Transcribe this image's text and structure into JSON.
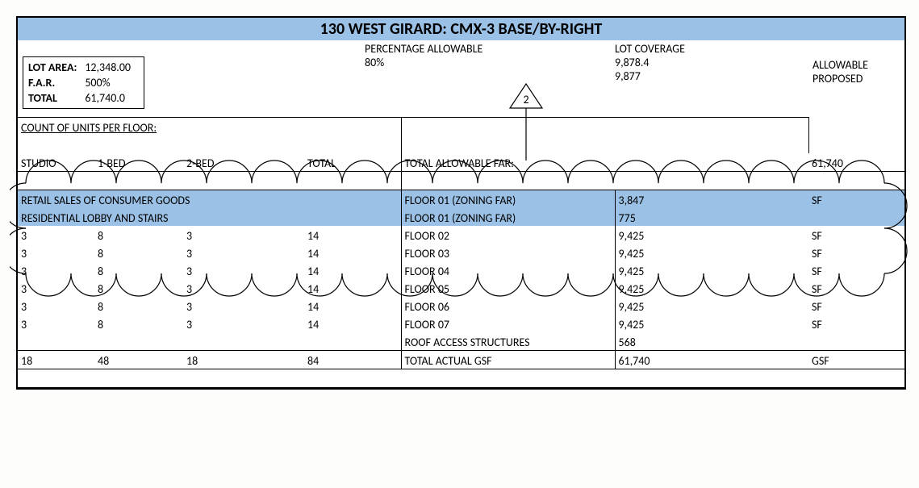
{
  "colors": {
    "accent": "#9bc2e6",
    "border": "#000000",
    "background": "#ffffff",
    "text": "#000000"
  },
  "title": "130 WEST GIRARD:  CMX-3 BASE/BY-RIGHT",
  "top": {
    "percentage_allowable_label": "PERCENTAGE ALLOWABLE",
    "percentage_allowable_value": "80%",
    "lot_coverage_label": "LOT COVERAGE",
    "lot_coverage_allowable": "9,878.4",
    "lot_coverage_proposed": "9,877",
    "allowable_label": "ALLOWABLE",
    "proposed_label": "PROPOSED",
    "lot_area_label": "LOT AREA:",
    "lot_area_value": "12,348.00",
    "far_label": "F.A.R.",
    "far_value": "500%",
    "total_label": "TOTAL",
    "total_value": "61,740.0",
    "callout_number": "2"
  },
  "units_header": "COUNT OF UNITS PER FLOOR:",
  "cols": {
    "studio": "STUDIO",
    "one_bed": "1-BED",
    "two_bed": "2-BED",
    "total": "TOTAL"
  },
  "far_row": {
    "label": "TOTAL ALLOWABLE FAR:",
    "value": "61,740"
  },
  "retail_row": "RETAIL SALES OF CONSUMER GOODS",
  "lobby_row": "RESIDENTIAL LOBBY AND STAIRS",
  "floors": [
    {
      "desc": "FLOOR 01 (ZONING FAR)",
      "val": "3,847",
      "unit": "SF",
      "hl": true,
      "left": null
    },
    {
      "desc": "FLOOR 01 (ZONING FAR)",
      "val": "775",
      "unit": "",
      "hl": true,
      "left": null
    },
    {
      "desc": "FLOOR 02",
      "val": "9,425",
      "unit": "SF",
      "hl": false,
      "left": [
        "3",
        "8",
        "3",
        "14"
      ]
    },
    {
      "desc": "FLOOR 03",
      "val": "9,425",
      "unit": "SF",
      "hl": false,
      "left": [
        "3",
        "8",
        "3",
        "14"
      ]
    },
    {
      "desc": "FLOOR 04",
      "val": "9,425",
      "unit": "SF",
      "hl": false,
      "left": [
        "3",
        "8",
        "3",
        "14"
      ]
    },
    {
      "desc": "FLOOR 05",
      "val": "9,425",
      "unit": "SF",
      "hl": false,
      "left": [
        "3",
        "8",
        "3",
        "14"
      ]
    },
    {
      "desc": "FLOOR 06",
      "val": "9,425",
      "unit": "SF",
      "hl": false,
      "left": [
        "3",
        "8",
        "3",
        "14"
      ]
    },
    {
      "desc": "FLOOR 07",
      "val": "9,425",
      "unit": "SF",
      "hl": false,
      "left": [
        "3",
        "8",
        "3",
        "14"
      ]
    },
    {
      "desc": "ROOF ACCESS STRUCTURES",
      "val": "568",
      "unit": "",
      "hl": false,
      "left": null
    }
  ],
  "totals_row": {
    "studio": "18",
    "one_bed": "48",
    "two_bed": "18",
    "total": "84",
    "desc": "TOTAL ACTUAL GSF",
    "val": "61,740",
    "unit": "GSF"
  }
}
